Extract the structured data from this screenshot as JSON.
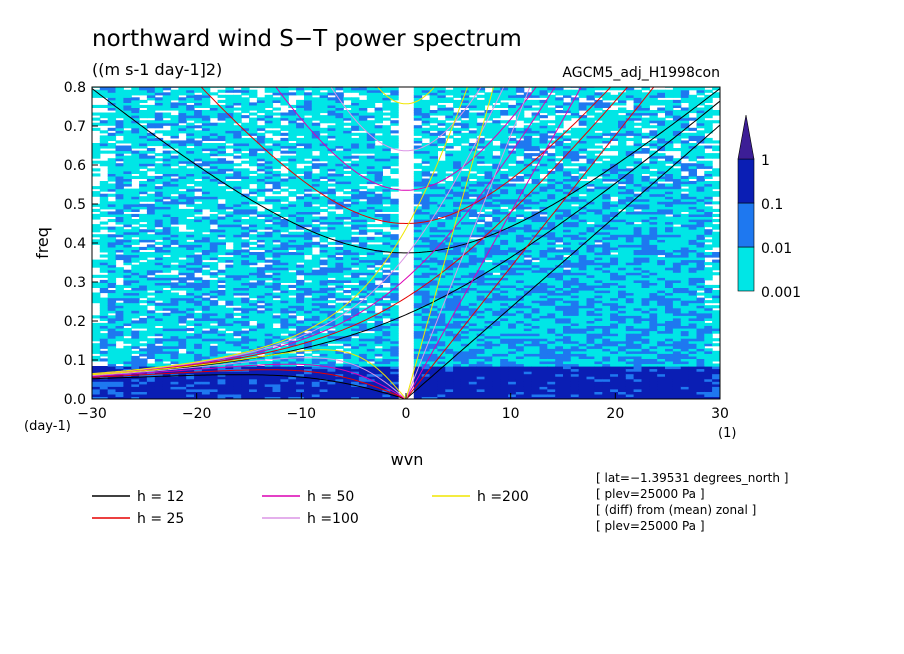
{
  "chart_data": {
    "type": "heatmap",
    "title": "northward wind S−T power spectrum",
    "subtitle": "((m s-1 day-1]2)",
    "run_label": "AGCM5_adj_H1998con",
    "xlabel": "wvn",
    "ylabel": "freq",
    "x_unit": "(1)",
    "y_unit": "(day-1)",
    "xlim": [
      -30,
      30
    ],
    "ylim": [
      0,
      0.8
    ],
    "x_ticks": [
      -30,
      -20,
      -10,
      0,
      10,
      20,
      30
    ],
    "x_tick_labels": [
      "−30",
      "−20",
      "−10",
      "0",
      "10",
      "20",
      "30"
    ],
    "y_ticks": [
      0,
      0.1,
      0.2,
      0.3,
      0.4,
      0.5,
      0.6,
      0.7,
      0.8
    ],
    "y_tick_labels": [
      "0.0",
      "0.1",
      "0.2",
      "0.3",
      "0.4",
      "0.5",
      "0.6",
      "0.7",
      "0.8"
    ],
    "colorbar": {
      "levels": [
        0.001,
        0.01,
        0.1,
        1
      ],
      "labels": [
        "0.001",
        "0.01",
        "0.1",
        "1"
      ],
      "colors": [
        "#00e6e6",
        "#1e78f0",
        "#0a1eb4",
        "#3c1e96"
      ]
    },
    "dispersion_curves": [
      {
        "label": "h = 12",
        "h": 12,
        "color": "#000000"
      },
      {
        "label": "h = 25",
        "h": 25,
        "color": "#e60000"
      },
      {
        "label": "h = 50",
        "h": 50,
        "color": "#dc00b4"
      },
      {
        "label": "h =100",
        "h": 100,
        "color": "#dc96e6"
      },
      {
        "label": "h =200",
        "h": 200,
        "color": "#f0e600"
      }
    ],
    "annotations": [
      "[ lat=−1.39531 degrees_north ]",
      "[ plev=25000 Pa ]",
      "[ (diff) from (mean) zonal ]",
      "[ plev=25000 Pa ]"
    ]
  }
}
